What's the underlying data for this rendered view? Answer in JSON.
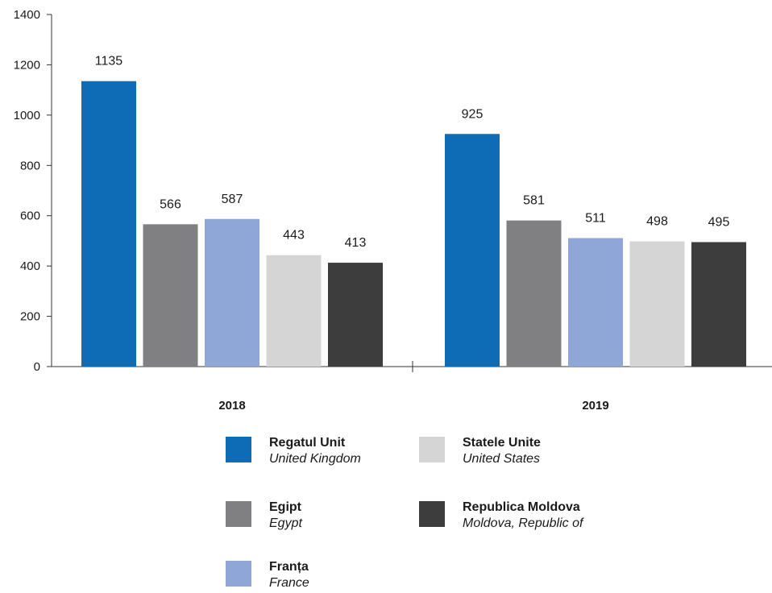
{
  "chart_data": {
    "type": "bar",
    "categories": [
      "2018",
      "2019"
    ],
    "series": [
      {
        "name": "Regatul Unit",
        "subtitle": "United Kingdom",
        "color": "#0e6bb5",
        "values": [
          1135,
          925
        ]
      },
      {
        "name": "Egipt",
        "subtitle": "Egypt",
        "color": "#808083",
        "values": [
          566,
          581
        ]
      },
      {
        "name": "Franța",
        "subtitle": "France",
        "color": "#8ea7d6",
        "values": [
          587,
          511
        ]
      },
      {
        "name": "Statele Unite",
        "subtitle": "United States",
        "color": "#d5d5d6",
        "values": [
          443,
          498
        ]
      },
      {
        "name": "Republica Moldova",
        "subtitle": "Moldova, Republic of",
        "color": "#3d3d3d",
        "values": [
          413,
          495
        ]
      }
    ],
    "yticks": [
      0,
      200,
      400,
      600,
      800,
      1000,
      1200,
      1400
    ],
    "ylim": [
      0,
      1400
    ],
    "grid": false,
    "legend_position": "bottom"
  }
}
